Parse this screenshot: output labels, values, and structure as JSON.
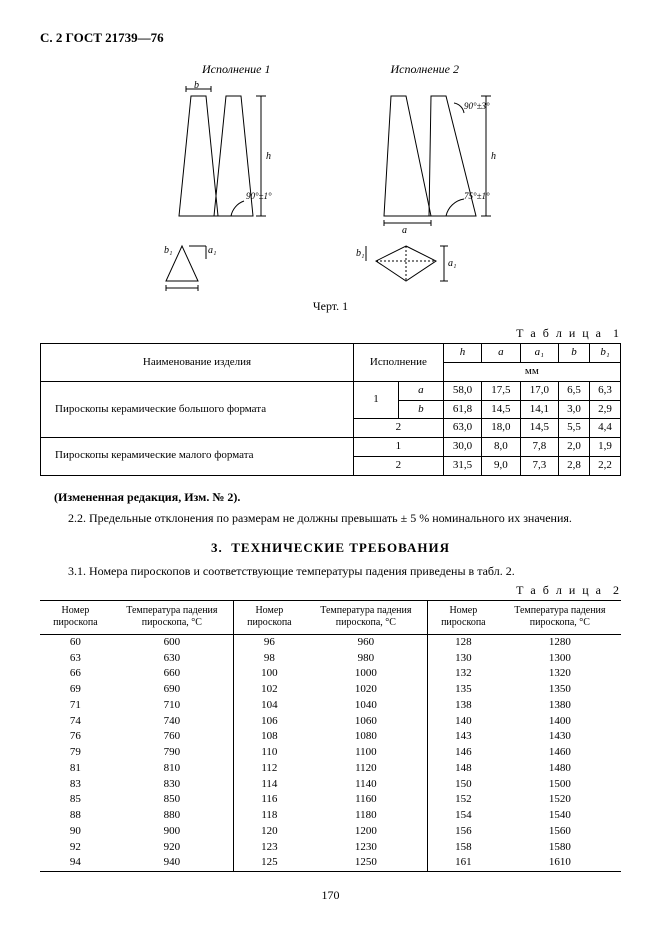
{
  "header": "С. 2 ГОСТ 21739—76",
  "variants": {
    "v1": "Исполнение 1",
    "v2": "Исполнение 2"
  },
  "drawing": {
    "dim_b": "b",
    "dim_h": "h",
    "dim_a": "a",
    "dim_a1": "a₁",
    "dim_b1": "b₁",
    "angle_90_1": "90°±1°",
    "angle_90_3": "90°±3°",
    "angle_75_1": "75°±1°"
  },
  "fig_caption": "Черт. 1",
  "table1_label": "Т а б л и ц а  1",
  "table1": {
    "headers": {
      "name": "Наименование изделия",
      "variant": "Исполнение",
      "h": "h",
      "a": "a",
      "a1": "a₁",
      "b": "b",
      "b1": "b₁",
      "mm": "мм"
    },
    "row1_name": "Пироскопы керамические большого формата",
    "row2_name": "Пироскопы керамические малого формата",
    "cells": {
      "r1_sub_a": "a",
      "r1_sub_b": "b",
      "r1_v": "1",
      "r1a_h": "58,0",
      "r1a_a": "17,5",
      "r1a_a1": "17,0",
      "r1a_b": "6,5",
      "r1a_b1": "6,3",
      "r1b_h": "61,8",
      "r1b_a": "14,5",
      "r1b_a1": "14,1",
      "r1b_b": "3,0",
      "r1b_b1": "2,9",
      "r1c_v": "2",
      "r1c_h": "63,0",
      "r1c_a": "18,0",
      "r1c_a1": "14,5",
      "r1c_b": "5,5",
      "r1c_b1": "4,4",
      "r2a_v": "1",
      "r2a_h": "30,0",
      "r2a_a": "8,0",
      "r2a_a1": "7,8",
      "r2a_b": "2,0",
      "r2a_b1": "1,9",
      "r2b_v": "2",
      "r2b_h": "31,5",
      "r2b_a": "9,0",
      "r2b_a1": "7,3",
      "r2b_b": "2,8",
      "r2b_b1": "2,2"
    }
  },
  "amend": "(Измененная редакция, Изм. № 2).",
  "para22": "2.2. Предельные отклонения по размерам не должны превышать ± 5 % номинального их значения.",
  "section3": "3.  ТЕХНИЧЕСКИЕ ТРЕБОВАНИЯ",
  "para31": "3.1. Номера пироскопов и соответствующие температуры падения приведены в табл. 2.",
  "table2_label": "Т а б л и ц а  2",
  "table2": {
    "headers": {
      "num": "Номер пироскопа",
      "temp": "Температура падения пироскопа, °С"
    },
    "rows": [
      [
        "60",
        "600",
        "96",
        "960",
        "128",
        "1280"
      ],
      [
        "63",
        "630",
        "98",
        "980",
        "130",
        "1300"
      ],
      [
        "66",
        "660",
        "100",
        "1000",
        "132",
        "1320"
      ],
      [
        "69",
        "690",
        "102",
        "1020",
        "135",
        "1350"
      ],
      [
        "71",
        "710",
        "104",
        "1040",
        "138",
        "1380"
      ],
      [
        "74",
        "740",
        "106",
        "1060",
        "140",
        "1400"
      ],
      [
        "76",
        "760",
        "108",
        "1080",
        "143",
        "1430"
      ],
      [
        "79",
        "790",
        "110",
        "1100",
        "146",
        "1460"
      ],
      [
        "81",
        "810",
        "112",
        "1120",
        "148",
        "1480"
      ],
      [
        "83",
        "830",
        "114",
        "1140",
        "150",
        "1500"
      ],
      [
        "85",
        "850",
        "116",
        "1160",
        "152",
        "1520"
      ],
      [
        "88",
        "880",
        "118",
        "1180",
        "154",
        "1540"
      ],
      [
        "90",
        "900",
        "120",
        "1200",
        "156",
        "1560"
      ],
      [
        "92",
        "920",
        "123",
        "1230",
        "158",
        "1580"
      ],
      [
        "94",
        "940",
        "125",
        "1250",
        "161",
        "1610"
      ]
    ]
  },
  "page_num": "170",
  "colors": {
    "text": "#000000",
    "bg": "#ffffff",
    "line": "#000000"
  }
}
